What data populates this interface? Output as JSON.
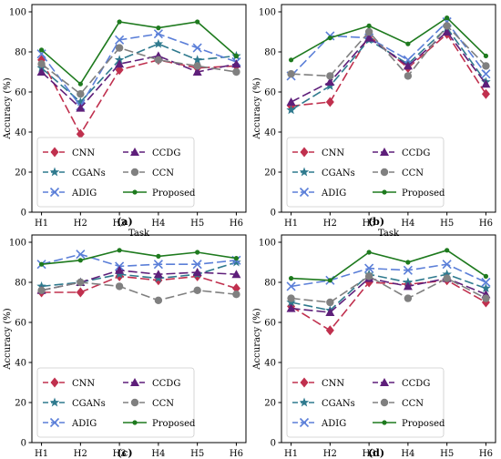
{
  "chart_data": [
    {
      "panel_label": "(a)",
      "type": "line",
      "xlabel": "Task",
      "ylabel": "Accuracy (%)",
      "categories": [
        "H1",
        "H2",
        "H3",
        "H4",
        "H5",
        "H6"
      ],
      "ylim": [
        0,
        100
      ],
      "yticks": [
        0,
        20,
        40,
        60,
        80,
        100
      ],
      "grid": false,
      "legend_position": "bottom-right",
      "series": [
        {
          "name": "CNN",
          "values": [
            76,
            39,
            71,
            76,
            72,
            73
          ]
        },
        {
          "name": "CGANs",
          "values": [
            72,
            55,
            76,
            84,
            76,
            78
          ]
        },
        {
          "name": "ADIG",
          "values": [
            79,
            53,
            86,
            89,
            82,
            75
          ]
        },
        {
          "name": "CCDG",
          "values": [
            70,
            52,
            74,
            78,
            70,
            74
          ]
        },
        {
          "name": "CCN",
          "values": [
            74,
            59,
            82,
            76,
            73,
            70
          ]
        },
        {
          "name": "Proposed",
          "values": [
            81,
            64,
            95,
            92,
            95,
            78
          ]
        }
      ]
    },
    {
      "panel_label": "(b)",
      "type": "line",
      "xlabel": "Task",
      "ylabel": "Accuracy (%)",
      "categories": [
        "H1",
        "H2",
        "H3",
        "H4",
        "H5",
        "H6"
      ],
      "ylim": [
        0,
        100
      ],
      "yticks": [
        0,
        20,
        40,
        60,
        80,
        100
      ],
      "grid": false,
      "legend_position": "bottom-right",
      "series": [
        {
          "name": "CNN",
          "values": [
            53,
            55,
            88,
            72,
            89,
            59
          ]
        },
        {
          "name": "CGANs",
          "values": [
            51,
            63,
            86,
            74,
            92,
            65
          ]
        },
        {
          "name": "ADIG",
          "values": [
            68,
            88,
            87,
            76,
            95,
            69
          ]
        },
        {
          "name": "CCDG",
          "values": [
            55,
            65,
            87,
            73,
            90,
            64
          ]
        },
        {
          "name": "CCN",
          "values": [
            69,
            68,
            90,
            68,
            93,
            73
          ]
        },
        {
          "name": "Proposed",
          "values": [
            76,
            87,
            93,
            84,
            97,
            78
          ]
        }
      ]
    },
    {
      "panel_label": "(c)",
      "type": "line",
      "xlabel": "Task",
      "ylabel": "Accuracy (%)",
      "categories": [
        "H1",
        "H2",
        "H3",
        "H4",
        "H5",
        "H6"
      ],
      "ylim": [
        0,
        100
      ],
      "yticks": [
        0,
        20,
        40,
        60,
        80,
        100
      ],
      "grid": false,
      "legend_position": "bottom-right",
      "series": [
        {
          "name": "CNN",
          "values": [
            75,
            75,
            83,
            81,
            83,
            77
          ]
        },
        {
          "name": "CGANs",
          "values": [
            78,
            80,
            84,
            82,
            84,
            90
          ]
        },
        {
          "name": "ADIG",
          "values": [
            89,
            94,
            88,
            89,
            89,
            91
          ]
        },
        {
          "name": "CCDG",
          "values": [
            76,
            80,
            86,
            84,
            85,
            84
          ]
        },
        {
          "name": "CCN",
          "values": [
            76,
            80,
            78,
            71,
            76,
            74
          ]
        },
        {
          "name": "Proposed",
          "values": [
            89,
            91,
            96,
            93,
            95,
            92
          ]
        }
      ]
    },
    {
      "panel_label": "(d)",
      "type": "line",
      "xlabel": "Task",
      "ylabel": "Accuracy (%)",
      "categories": [
        "H1",
        "H2",
        "H3",
        "H4",
        "H5",
        "H6"
      ],
      "ylim": [
        0,
        100
      ],
      "yticks": [
        0,
        20,
        40,
        60,
        80,
        100
      ],
      "grid": false,
      "legend_position": "bottom-right",
      "series": [
        {
          "name": "CNN",
          "values": [
            68,
            56,
            80,
            79,
            81,
            70
          ]
        },
        {
          "name": "CGANs",
          "values": [
            70,
            66,
            84,
            80,
            84,
            77
          ]
        },
        {
          "name": "ADIG",
          "values": [
            78,
            81,
            87,
            86,
            89,
            80
          ]
        },
        {
          "name": "CCDG",
          "values": [
            67,
            65,
            82,
            78,
            82,
            74
          ]
        },
        {
          "name": "CCN",
          "values": [
            72,
            70,
            83,
            72,
            82,
            72
          ]
        },
        {
          "name": "Proposed",
          "values": [
            82,
            81,
            95,
            90,
            96,
            83
          ]
        }
      ]
    }
  ],
  "series_styles": [
    {
      "color": "#c0304e",
      "marker": "diamond",
      "dash": "10,4"
    },
    {
      "color": "#2f7a8e",
      "marker": "star",
      "dash": "10,4"
    },
    {
      "color": "#5b7fd8",
      "marker": "x",
      "dash": "10,4"
    },
    {
      "color": "#5e1f7a",
      "marker": "triangle",
      "dash": "10,4"
    },
    {
      "color": "#808080",
      "marker": "circle",
      "dash": "10,4"
    },
    {
      "color": "#1e7a1e",
      "marker": "dot",
      "dash": ""
    }
  ]
}
